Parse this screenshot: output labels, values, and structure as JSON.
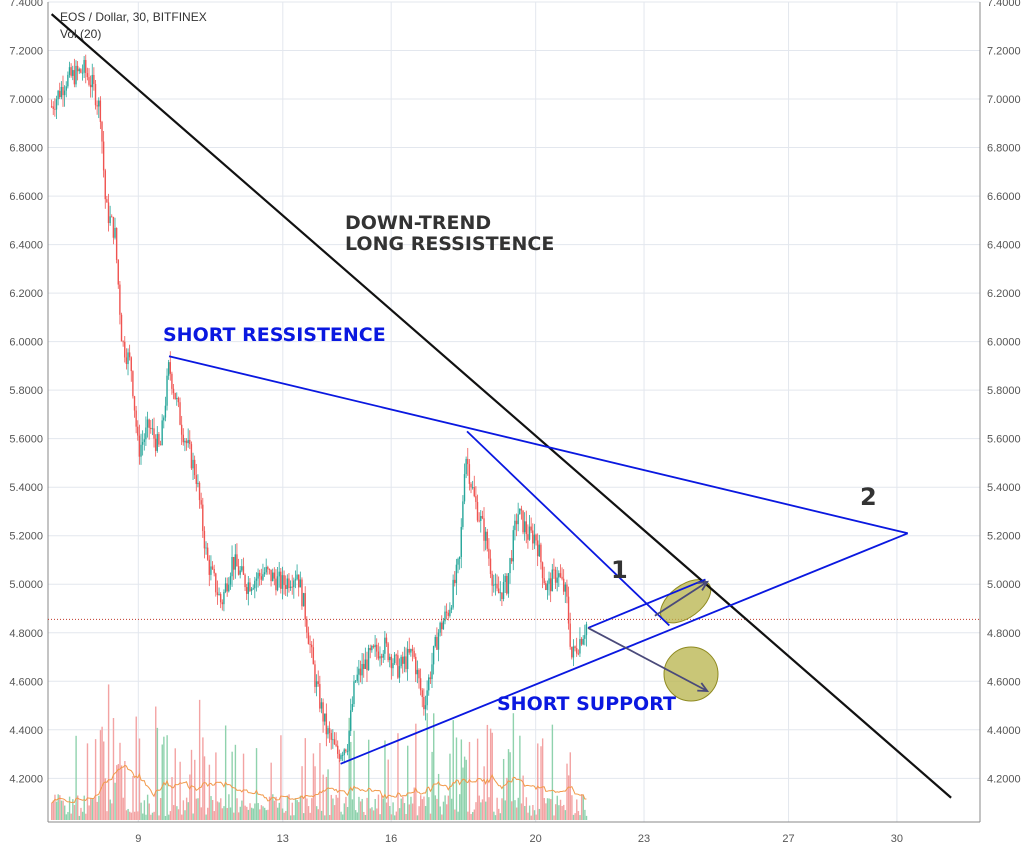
{
  "chart_data": {
    "type": "candlestick",
    "title": "EOS / Dollar, 30, BITFINEX",
    "indicator_label": "Vol (20)",
    "y_axis": {
      "range": [
        4.02,
        7.4
      ],
      "ticks": [
        "4.2000",
        "4.4000",
        "4.6000",
        "4.8000",
        "5.0000",
        "5.2000",
        "5.4000",
        "5.6000",
        "5.8000",
        "6.0000",
        "6.2000",
        "6.4000",
        "6.6000",
        "6.8000",
        "7.0000",
        "7.2000",
        "7.4000"
      ],
      "sides": "both"
    },
    "x_axis": {
      "range_days": [
        6.5,
        32.3
      ],
      "ticks": [
        {
          "label": "9",
          "day": 9
        },
        {
          "label": "13",
          "day": 13
        },
        {
          "label": "16",
          "day": 16
        },
        {
          "label": "20",
          "day": 20
        },
        {
          "label": "23",
          "day": 23
        },
        {
          "label": "27",
          "day": 27
        },
        {
          "label": "30",
          "day": 30
        }
      ]
    },
    "price_path": [
      {
        "day": 6.6,
        "price": 6.97
      },
      {
        "day": 7.0,
        "price": 7.08
      },
      {
        "day": 7.5,
        "price": 7.12
      },
      {
        "day": 7.75,
        "price": 7.05
      },
      {
        "day": 7.95,
        "price": 6.95
      },
      {
        "day": 8.1,
        "price": 6.55
      },
      {
        "day": 8.35,
        "price": 6.45
      },
      {
        "day": 8.55,
        "price": 6.0
      },
      {
        "day": 8.8,
        "price": 5.9
      },
      {
        "day": 9.0,
        "price": 5.55
      },
      {
        "day": 9.3,
        "price": 5.65
      },
      {
        "day": 9.6,
        "price": 5.55
      },
      {
        "day": 9.85,
        "price": 5.9
      },
      {
        "day": 10.2,
        "price": 5.65
      },
      {
        "day": 10.6,
        "price": 5.45
      },
      {
        "day": 10.9,
        "price": 5.1
      },
      {
        "day": 11.3,
        "price": 4.92
      },
      {
        "day": 11.6,
        "price": 5.1
      },
      {
        "day": 12.0,
        "price": 5.0
      },
      {
        "day": 12.5,
        "price": 5.05
      },
      {
        "day": 13.0,
        "price": 5.0
      },
      {
        "day": 13.4,
        "price": 5.05
      },
      {
        "day": 13.6,
        "price": 4.9
      },
      {
        "day": 13.9,
        "price": 4.6
      },
      {
        "day": 14.2,
        "price": 4.4
      },
      {
        "day": 14.5,
        "price": 4.3
      },
      {
        "day": 14.8,
        "price": 4.35
      },
      {
        "day": 15.0,
        "price": 4.6
      },
      {
        "day": 15.4,
        "price": 4.7
      },
      {
        "day": 15.8,
        "price": 4.75
      },
      {
        "day": 16.2,
        "price": 4.65
      },
      {
        "day": 16.6,
        "price": 4.72
      },
      {
        "day": 16.9,
        "price": 4.5
      },
      {
        "day": 17.3,
        "price": 4.8
      },
      {
        "day": 17.6,
        "price": 4.9
      },
      {
        "day": 17.9,
        "price": 5.1
      },
      {
        "day": 18.05,
        "price": 5.55
      },
      {
        "day": 18.3,
        "price": 5.35
      },
      {
        "day": 18.6,
        "price": 5.2
      },
      {
        "day": 18.9,
        "price": 4.95
      },
      {
        "day": 19.2,
        "price": 5.0
      },
      {
        "day": 19.5,
        "price": 5.3
      },
      {
        "day": 19.8,
        "price": 5.2
      },
      {
        "day": 20.0,
        "price": 5.2
      },
      {
        "day": 20.3,
        "price": 4.98
      },
      {
        "day": 20.6,
        "price": 5.05
      },
      {
        "day": 20.85,
        "price": 4.95
      },
      {
        "day": 21.0,
        "price": 4.7
      },
      {
        "day": 21.25,
        "price": 4.78
      },
      {
        "day": 21.45,
        "price": 4.85
      }
    ],
    "last_price": 4.855,
    "trend_lines": [
      {
        "label": "DOWN-TREND\nLONG RESSISTENCE",
        "color": "#111111",
        "from": {
          "day": 6.6,
          "price": 7.35
        },
        "to": {
          "day": 31.5,
          "price": 4.12
        }
      },
      {
        "label": "SHORT RESSISTENCE",
        "color": "#0a18e0",
        "from": {
          "day": 9.85,
          "price": 5.94
        },
        "to": {
          "day": 30.3,
          "price": 5.21
        }
      },
      {
        "label": "SHORT SUPPORT",
        "color": "#0a18e0",
        "from": {
          "day": 14.6,
          "price": 4.26
        },
        "to": {
          "day": 30.3,
          "price": 5.21
        }
      },
      {
        "label": "",
        "color": "#0a18e0",
        "from": {
          "day": 18.1,
          "price": 5.63
        },
        "to": {
          "day": 23.7,
          "price": 4.83
        }
      },
      {
        "label": "",
        "color": "#0a18e0",
        "from": {
          "day": 21.45,
          "price": 4.82
        },
        "to": {
          "day": 24.7,
          "price": 5.02
        }
      }
    ],
    "projection_arrows": [
      {
        "from": {
          "day": 23.3,
          "price": 4.87
        },
        "to": {
          "day": 24.75,
          "price": 5.01
        }
      },
      {
        "from": {
          "day": 21.45,
          "price": 4.82
        },
        "to": {
          "day": 24.75,
          "price": 4.56
        }
      }
    ],
    "highlight_ellipses": [
      {
        "center": {
          "day": 24.15,
          "price": 4.93
        },
        "color": "#b7b34a"
      },
      {
        "center": {
          "day": 24.3,
          "price": 4.63
        },
        "color": "#b7b34a"
      }
    ],
    "annotations": {
      "down_trend_line1": "DOWN-TREND",
      "down_trend_line2": "LONG RESSISTENCE",
      "short_resistance": "SHORT RESSISTENCE",
      "short_support": "SHORT SUPPORT",
      "marker_1": "1",
      "marker_2": "2"
    },
    "colors": {
      "up": "#26a69a",
      "down": "#ef5350",
      "volume_up": "#8fd2ad",
      "volume_down": "#f3a3a3",
      "volume_ma": "#f2994a",
      "grid": "#e3e7ee",
      "last_price_line": "#c0392b"
    },
    "grid": true
  }
}
